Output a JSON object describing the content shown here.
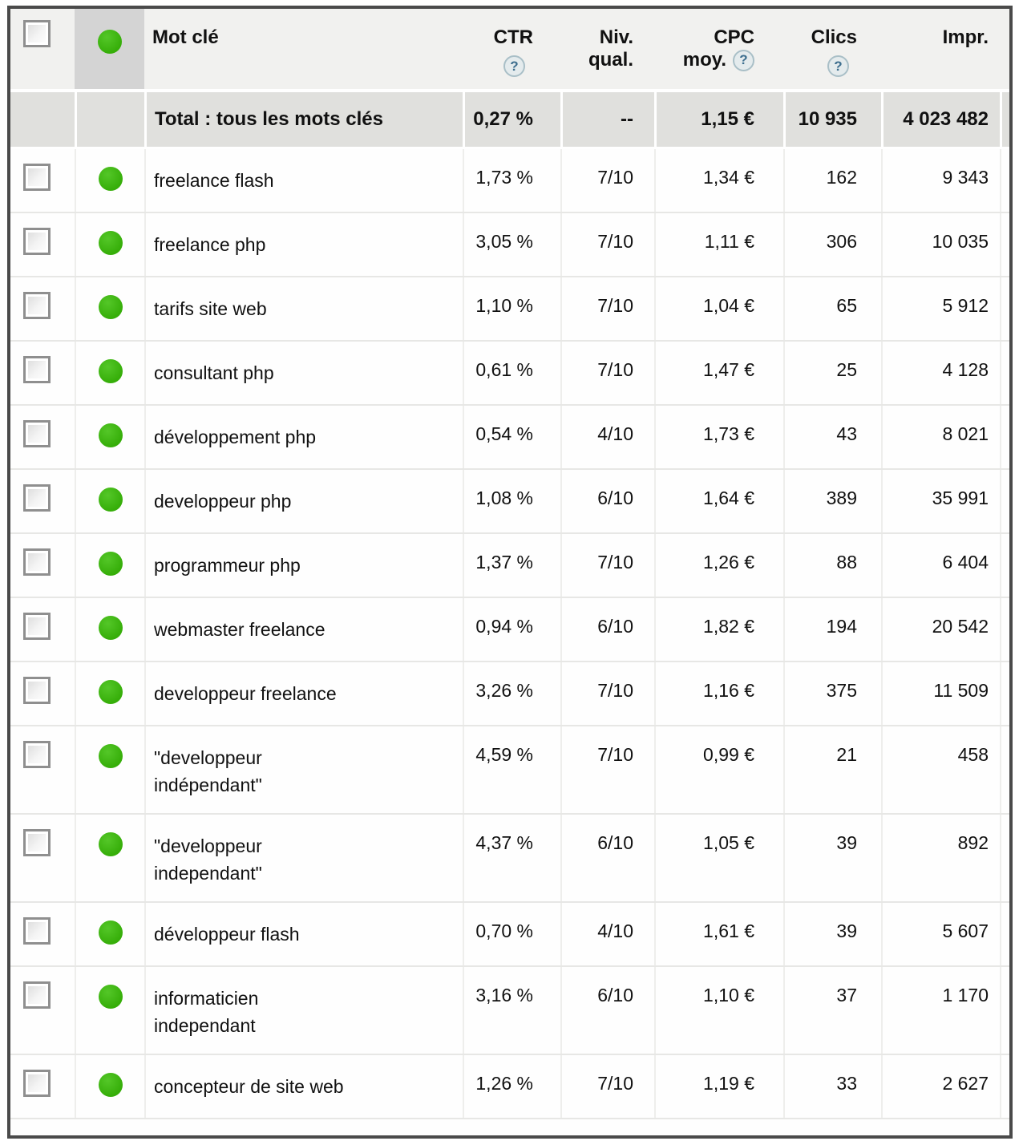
{
  "theme": {
    "green_dot": "#36ae09",
    "header_bg": "#f1f1ef",
    "status_col_header_bg": "#d4d4d4",
    "total_row_bg": "#e0e0dd",
    "outer_border": "#4a4a4a",
    "help_icon_color": "#3d6e8e"
  },
  "header": {
    "select_all_checked": false,
    "keyword": "Mot clé",
    "ctr": "CTR",
    "qual_line1": "Niv.",
    "qual_line2": "qual.",
    "cpc_line1": "CPC",
    "cpc_line2": "moy.",
    "clics": "Clics",
    "impr": "Impr.",
    "help_glyph": "?"
  },
  "total": {
    "label": "Total : tous les mots clés",
    "ctr": "0,27 %",
    "qual": "--",
    "cpc": "1,15 €",
    "clics": "10 935",
    "impr": "4 023 482"
  },
  "rows": [
    {
      "checked": false,
      "status": "active",
      "keyword": "freelance flash",
      "ctr": "1,73 %",
      "qual": "7/10",
      "cpc": "1,34 €",
      "clics": "162",
      "impr": "9 343"
    },
    {
      "checked": false,
      "status": "active",
      "keyword": "freelance php",
      "ctr": "3,05 %",
      "qual": "7/10",
      "cpc": "1,11 €",
      "clics": "306",
      "impr": "10 035"
    },
    {
      "checked": false,
      "status": "active",
      "keyword": "tarifs site web",
      "ctr": "1,10 %",
      "qual": "7/10",
      "cpc": "1,04 €",
      "clics": "65",
      "impr": "5 912"
    },
    {
      "checked": false,
      "status": "active",
      "keyword": "consultant php",
      "ctr": "0,61 %",
      "qual": "7/10",
      "cpc": "1,47 €",
      "clics": "25",
      "impr": "4 128"
    },
    {
      "checked": false,
      "status": "active",
      "keyword": "développement php",
      "ctr": "0,54 %",
      "qual": "4/10",
      "cpc": "1,73 €",
      "clics": "43",
      "impr": "8 021"
    },
    {
      "checked": false,
      "status": "active",
      "keyword": "developpeur php",
      "ctr": "1,08 %",
      "qual": "6/10",
      "cpc": "1,64 €",
      "clics": "389",
      "impr": "35 991"
    },
    {
      "checked": false,
      "status": "active",
      "keyword": "programmeur php",
      "ctr": "1,37 %",
      "qual": "7/10",
      "cpc": "1,26 €",
      "clics": "88",
      "impr": "6 404"
    },
    {
      "checked": false,
      "status": "active",
      "keyword": "webmaster freelance",
      "ctr": "0,94 %",
      "qual": "6/10",
      "cpc": "1,82 €",
      "clics": "194",
      "impr": "20 542"
    },
    {
      "checked": false,
      "status": "active",
      "keyword": "developpeur freelance",
      "ctr": "3,26 %",
      "qual": "7/10",
      "cpc": "1,16 €",
      "clics": "375",
      "impr": "11 509"
    },
    {
      "checked": false,
      "status": "active",
      "keyword": "\"developpeur\nindépendant\"",
      "ctr": "4,59 %",
      "qual": "7/10",
      "cpc": "0,99 €",
      "clics": "21",
      "impr": "458"
    },
    {
      "checked": false,
      "status": "active",
      "keyword": "\"developpeur\nindependant\"",
      "ctr": "4,37 %",
      "qual": "6/10",
      "cpc": "1,05 €",
      "clics": "39",
      "impr": "892"
    },
    {
      "checked": false,
      "status": "active",
      "keyword": "développeur flash",
      "ctr": "0,70 %",
      "qual": "4/10",
      "cpc": "1,61 €",
      "clics": "39",
      "impr": "5 607"
    },
    {
      "checked": false,
      "status": "active",
      "keyword": "informaticien\nindependant",
      "ctr": "3,16 %",
      "qual": "6/10",
      "cpc": "1,10 €",
      "clics": "37",
      "impr": "1 170"
    },
    {
      "checked": false,
      "status": "active",
      "keyword": "concepteur de site web",
      "ctr": "1,26 %",
      "qual": "7/10",
      "cpc": "1,19 €",
      "clics": "33",
      "impr": "2 627"
    }
  ]
}
